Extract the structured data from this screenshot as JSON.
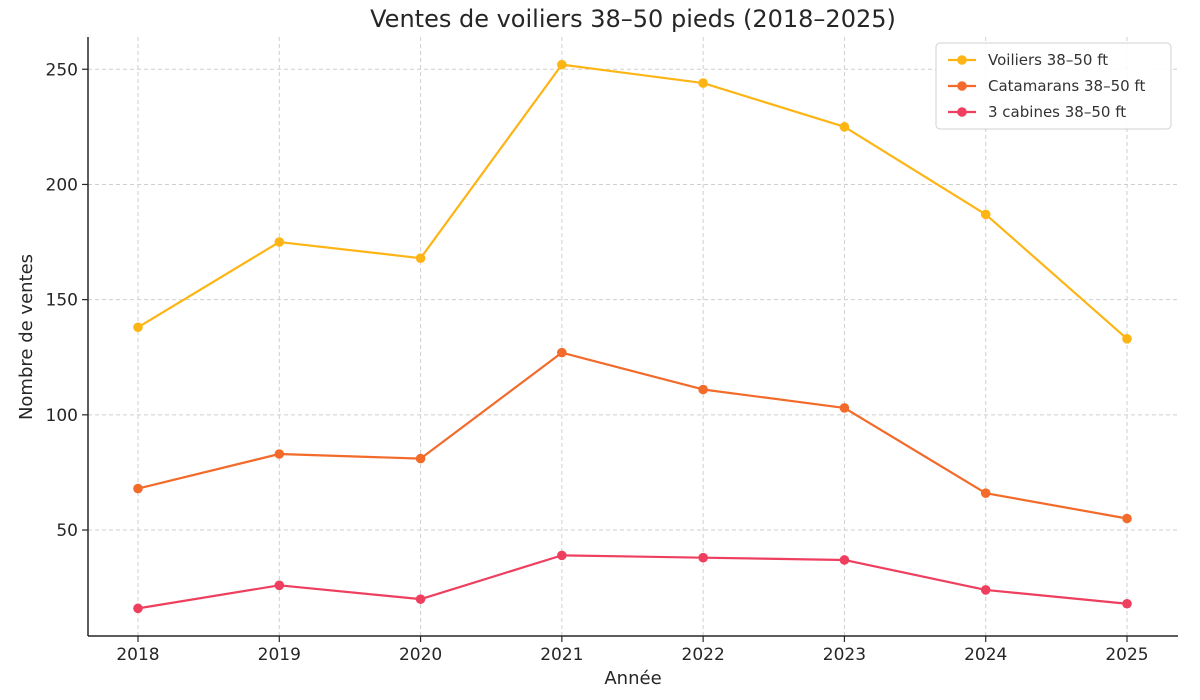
{
  "chart_data": {
    "type": "line",
    "title": "Ventes de voiliers 38–50 pieds (2018–2025)",
    "xlabel": "Année",
    "ylabel": "Nombre de ventes",
    "x": [
      "2018",
      "2019",
      "2020",
      "2021",
      "2022",
      "2023",
      "2024",
      "2025"
    ],
    "ylim": [
      4,
      264
    ],
    "yticks": [
      50,
      100,
      150,
      200,
      250
    ],
    "grid": true,
    "legend_position": "top-right",
    "series": [
      {
        "name": "Voiliers 38–50 ft",
        "color": "#FDB515",
        "values": [
          138,
          175,
          168,
          252,
          244,
          225,
          187,
          133
        ]
      },
      {
        "name": "Catamarans 38–50 ft",
        "color": "#F26B2A",
        "values": [
          68,
          83,
          81,
          127,
          111,
          103,
          66,
          55
        ]
      },
      {
        "name": "3 cabines 38–50 ft",
        "color": "#EE3F5F",
        "values": [
          16,
          26,
          20,
          39,
          38,
          37,
          24,
          18
        ]
      }
    ]
  }
}
